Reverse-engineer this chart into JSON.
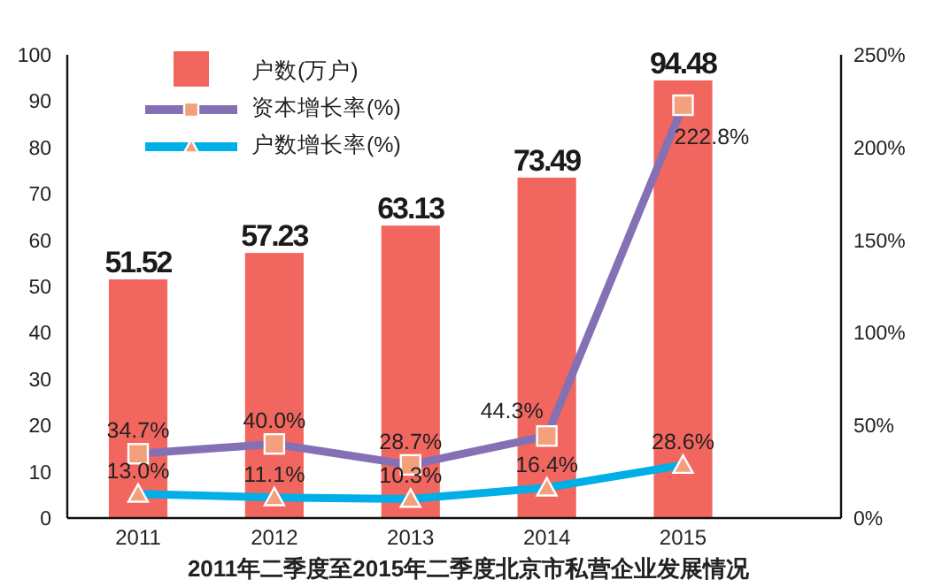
{
  "chart_data": {
    "type": "bar",
    "title": "2011年二季度至2015年二季度北京市私营企业发展情况",
    "categories": [
      "2011",
      "2012",
      "2013",
      "2014",
      "2015"
    ],
    "ylim": [
      0,
      100
    ],
    "yticks": [
      0,
      10,
      20,
      30,
      40,
      50,
      60,
      70,
      80,
      90,
      100
    ],
    "y2lim": [
      0,
      250
    ],
    "y2ticks": [
      {
        "value": 0,
        "label": "0%"
      },
      {
        "value": 50,
        "label": "50%"
      },
      {
        "value": 100,
        "label": "100%"
      },
      {
        "value": 150,
        "label": "150%"
      },
      {
        "value": 200,
        "label": "200%"
      },
      {
        "value": 250,
        "label": "250%"
      }
    ],
    "grid": false,
    "legend": "top left",
    "series": [
      {
        "name": "户数(万户)",
        "color": "#f26660",
        "values": [
          51.52,
          57.23,
          63.13,
          73.49,
          94.48
        ],
        "data_labels": true
      },
      {
        "name": "资本增长率(%)",
        "type": "line",
        "axis": "y2",
        "color": "#8470b4",
        "marker": "square",
        "values": [
          34.7,
          40.0,
          28.7,
          44.3,
          222.8
        ],
        "value_labels": [
          "34.7%",
          "40.0%",
          "28.7%",
          "44.3%",
          "222.8%"
        ]
      },
      {
        "name": "户数增长率(%)",
        "type": "line",
        "axis": "y2",
        "color": "#00aee8",
        "marker": "triangle",
        "values": [
          13.0,
          11.1,
          10.3,
          16.4,
          28.6
        ],
        "value_labels": [
          "13.0%",
          "11.1%",
          "10.3%",
          "16.4%",
          "28.6%"
        ]
      }
    ]
  }
}
